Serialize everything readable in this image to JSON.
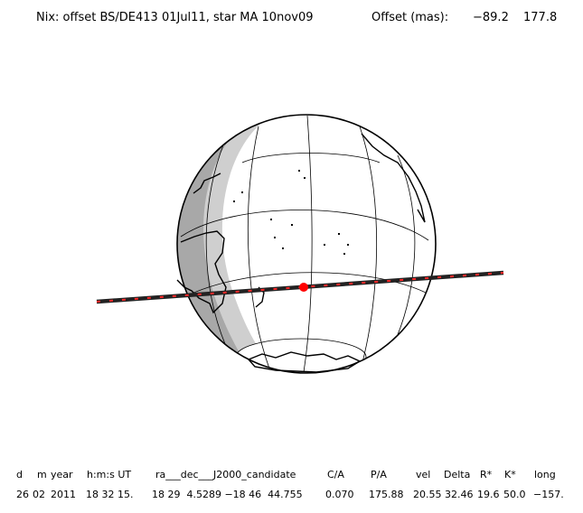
{
  "header": {
    "title": "Nix: offset BS/DE413 01Jul11, star MA 10nov09",
    "offset_label": "Offset (mas):",
    "offset_ra": "−89.2",
    "offset_dec": "177.8"
  },
  "colors": {
    "track": "#222222",
    "dash": "#ff2a2a",
    "center_dot": "#ff0000",
    "night": "#a8a8a8",
    "twilight": "#cfcfcf",
    "day": "#ffffff"
  },
  "table": {
    "headers": [
      "d",
      "m",
      "year",
      "h:m:s UT",
      "ra___dec___J2000_candidate",
      "C/A",
      "P/A",
      "vel",
      "Delta",
      "R*",
      "K*",
      "long"
    ],
    "values": [
      "26",
      "02",
      "2011",
      "18 32 15.",
      "18 29  4.5289 −18 46  44.755",
      "0.070",
      "175.88",
      "20.55",
      "32.46",
      "19.6",
      "50.0",
      "−157."
    ]
  }
}
